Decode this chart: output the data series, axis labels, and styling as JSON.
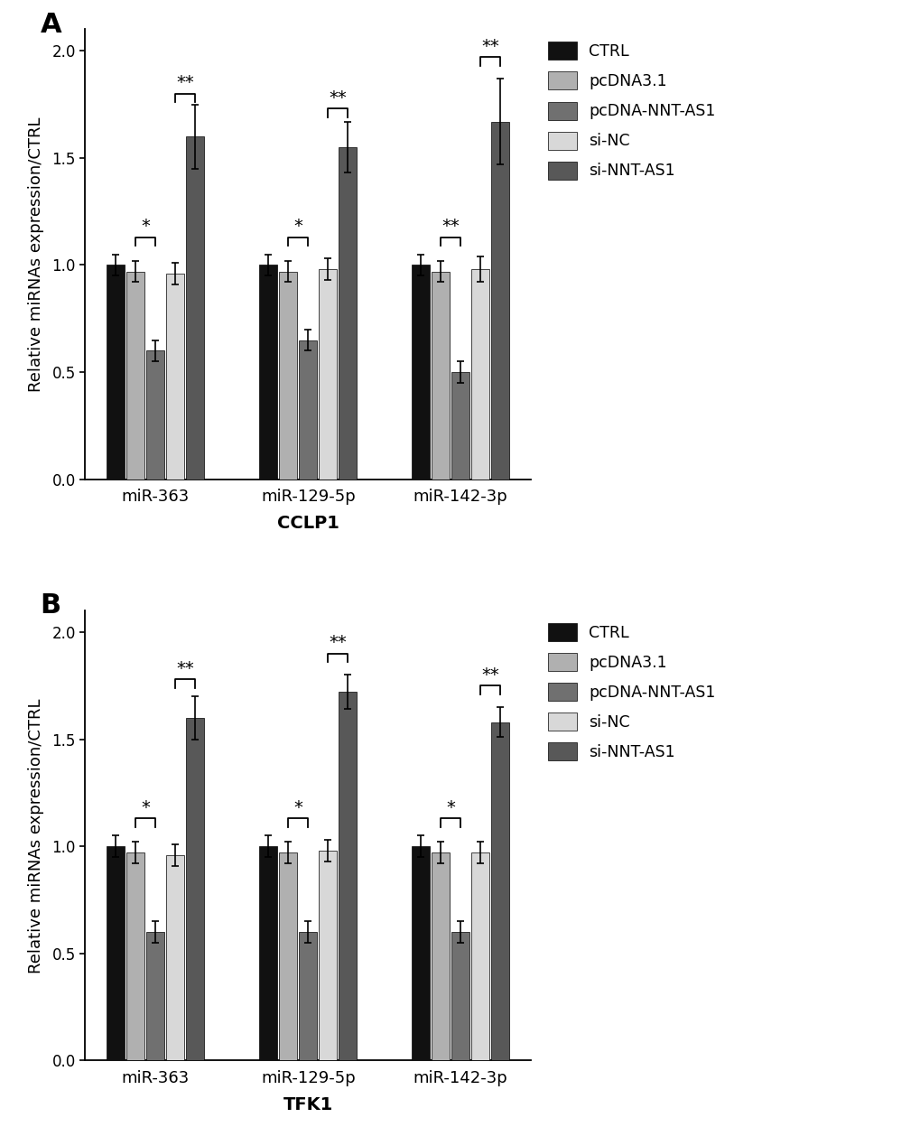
{
  "panel_A": {
    "title_label": "A",
    "xlabel": "CCLP1",
    "ylabel": "Relative miRNAs expression/CTRL",
    "groups": [
      "miR-363",
      "miR-129-5p",
      "miR-142-3p"
    ],
    "series_labels": [
      "CTRL",
      "pcDNA3.1",
      "pcDNA-NNT-AS1",
      "si-NC",
      "si-NNT-AS1"
    ],
    "bar_colors": [
      "#111111",
      "#b0b0b0",
      "#707070",
      "#d8d8d8",
      "#585858"
    ],
    "values": [
      [
        1.0,
        1.0,
        1.0
      ],
      [
        0.97,
        0.97,
        0.97
      ],
      [
        0.6,
        0.65,
        0.5
      ],
      [
        0.96,
        0.98,
        0.98
      ],
      [
        1.6,
        1.55,
        1.67
      ]
    ],
    "errors": [
      [
        0.05,
        0.05,
        0.05
      ],
      [
        0.05,
        0.05,
        0.05
      ],
      [
        0.05,
        0.05,
        0.05
      ],
      [
        0.05,
        0.05,
        0.06
      ],
      [
        0.15,
        0.12,
        0.2
      ]
    ],
    "sig_star_low": [
      {
        "group": 0,
        "bar1": 1,
        "bar2": 2,
        "y": 1.13,
        "label": "*"
      },
      {
        "group": 1,
        "bar1": 1,
        "bar2": 2,
        "y": 1.13,
        "label": "*"
      },
      {
        "group": 2,
        "bar1": 1,
        "bar2": 2,
        "y": 1.13,
        "label": "**"
      }
    ],
    "sig_star_high": [
      {
        "group": 0,
        "bar1": 3,
        "bar2": 4,
        "y": 1.8,
        "label": "**"
      },
      {
        "group": 1,
        "bar1": 3,
        "bar2": 4,
        "y": 1.73,
        "label": "**"
      },
      {
        "group": 2,
        "bar1": 3,
        "bar2": 4,
        "y": 1.97,
        "label": "**"
      }
    ],
    "ylim": [
      0,
      2.1
    ],
    "yticks": [
      0.0,
      0.5,
      1.0,
      1.5,
      2.0
    ]
  },
  "panel_B": {
    "title_label": "B",
    "xlabel": "TFK1",
    "ylabel": "Relative miRNAs expression/CTRL",
    "groups": [
      "miR-363",
      "miR-129-5p",
      "miR-142-3p"
    ],
    "series_labels": [
      "CTRL",
      "pcDNA3.1",
      "pcDNA-NNT-AS1",
      "si-NC",
      "si-NNT-AS1"
    ],
    "bar_colors": [
      "#111111",
      "#b0b0b0",
      "#707070",
      "#d8d8d8",
      "#585858"
    ],
    "values": [
      [
        1.0,
        1.0,
        1.0
      ],
      [
        0.97,
        0.97,
        0.97
      ],
      [
        0.6,
        0.6,
        0.6
      ],
      [
        0.96,
        0.98,
        0.97
      ],
      [
        1.6,
        1.72,
        1.58
      ]
    ],
    "errors": [
      [
        0.05,
        0.05,
        0.05
      ],
      [
        0.05,
        0.05,
        0.05
      ],
      [
        0.05,
        0.05,
        0.05
      ],
      [
        0.05,
        0.05,
        0.05
      ],
      [
        0.1,
        0.08,
        0.07
      ]
    ],
    "sig_star_low": [
      {
        "group": 0,
        "bar1": 1,
        "bar2": 2,
        "y": 1.13,
        "label": "*"
      },
      {
        "group": 1,
        "bar1": 1,
        "bar2": 2,
        "y": 1.13,
        "label": "*"
      },
      {
        "group": 2,
        "bar1": 1,
        "bar2": 2,
        "y": 1.13,
        "label": "*"
      }
    ],
    "sig_star_high": [
      {
        "group": 0,
        "bar1": 3,
        "bar2": 4,
        "y": 1.78,
        "label": "**"
      },
      {
        "group": 1,
        "bar1": 3,
        "bar2": 4,
        "y": 1.9,
        "label": "**"
      },
      {
        "group": 2,
        "bar1": 3,
        "bar2": 4,
        "y": 1.75,
        "label": "**"
      }
    ],
    "ylim": [
      0,
      2.1
    ],
    "yticks": [
      0.0,
      0.5,
      1.0,
      1.5,
      2.0
    ]
  },
  "legend_labels": [
    "CTRL",
    "pcDNA3.1",
    "pcDNA-NNT-AS1",
    "si-NC",
    "si-NNT-AS1"
  ],
  "legend_colors": [
    "#111111",
    "#b0b0b0",
    "#707070",
    "#d8d8d8",
    "#585858"
  ],
  "fig_width": 10.2,
  "fig_height": 12.48,
  "dpi": 100
}
